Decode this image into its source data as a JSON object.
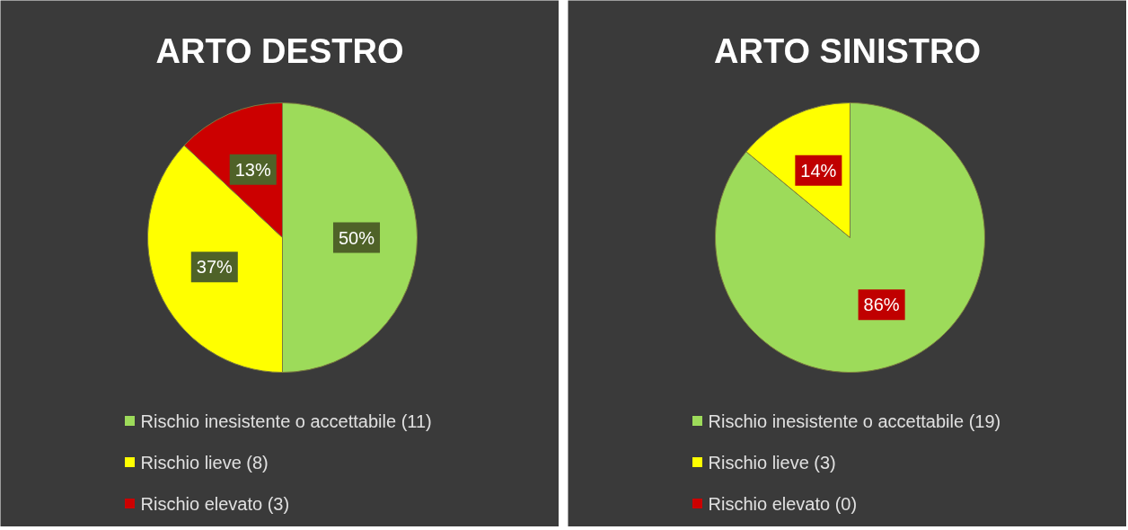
{
  "chart_data": [
    {
      "type": "pie",
      "title": "ARTO DESTRO",
      "categories": [
        "Rischio inesistente o accettabile (11)",
        "Rischio lieve (8)",
        "Rischio elevato (3)"
      ],
      "values": [
        50,
        37,
        13
      ],
      "colors": [
        "#9ddb5a",
        "#ffff00",
        "#cc0000"
      ],
      "value_labels": [
        "50%",
        "37%",
        "13%"
      ],
      "legend": "bottom"
    },
    {
      "type": "pie",
      "title": "ARTO SINISTRO",
      "categories": [
        "Rischio inesistente o accettabile (19)",
        "Rischio lieve (3)",
        "Rischio elevato (0)"
      ],
      "values": [
        86,
        14,
        0
      ],
      "colors": [
        "#9ddb5a",
        "#ffff00",
        "#cc0000"
      ],
      "value_labels": [
        "86%",
        "14%",
        null
      ],
      "legend": "bottom"
    }
  ]
}
